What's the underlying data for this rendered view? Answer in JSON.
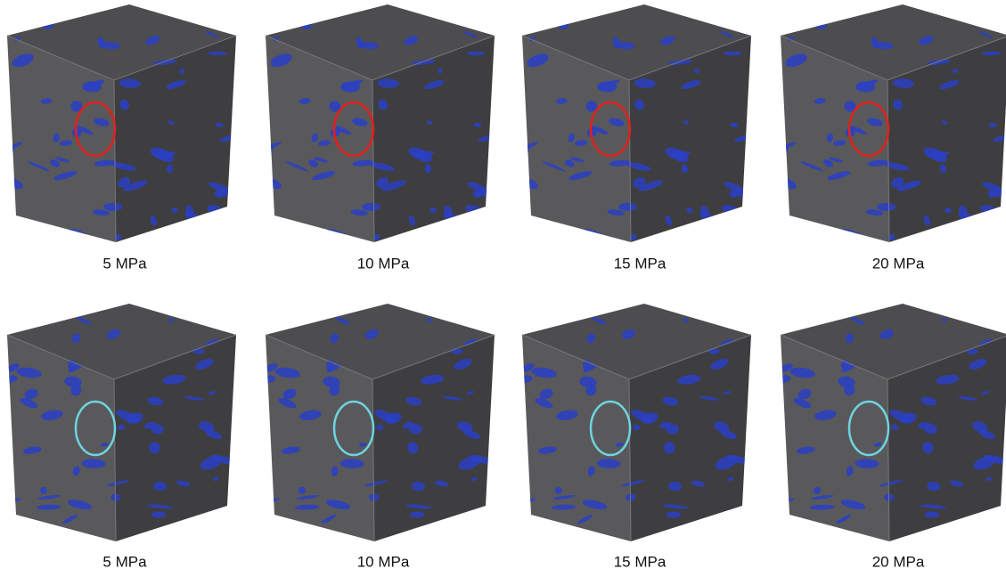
{
  "rows": [
    {
      "panels": [
        {
          "label": "5 MPa"
        },
        {
          "label": "10 MPa"
        },
        {
          "label": "15 MPa"
        },
        {
          "label": "20 MPa"
        }
      ]
    },
    {
      "panels": [
        {
          "label": "5 MPa"
        },
        {
          "label": "10 MPa"
        },
        {
          "label": "15 MPa"
        },
        {
          "label": "20 MPa"
        }
      ]
    }
  ]
}
